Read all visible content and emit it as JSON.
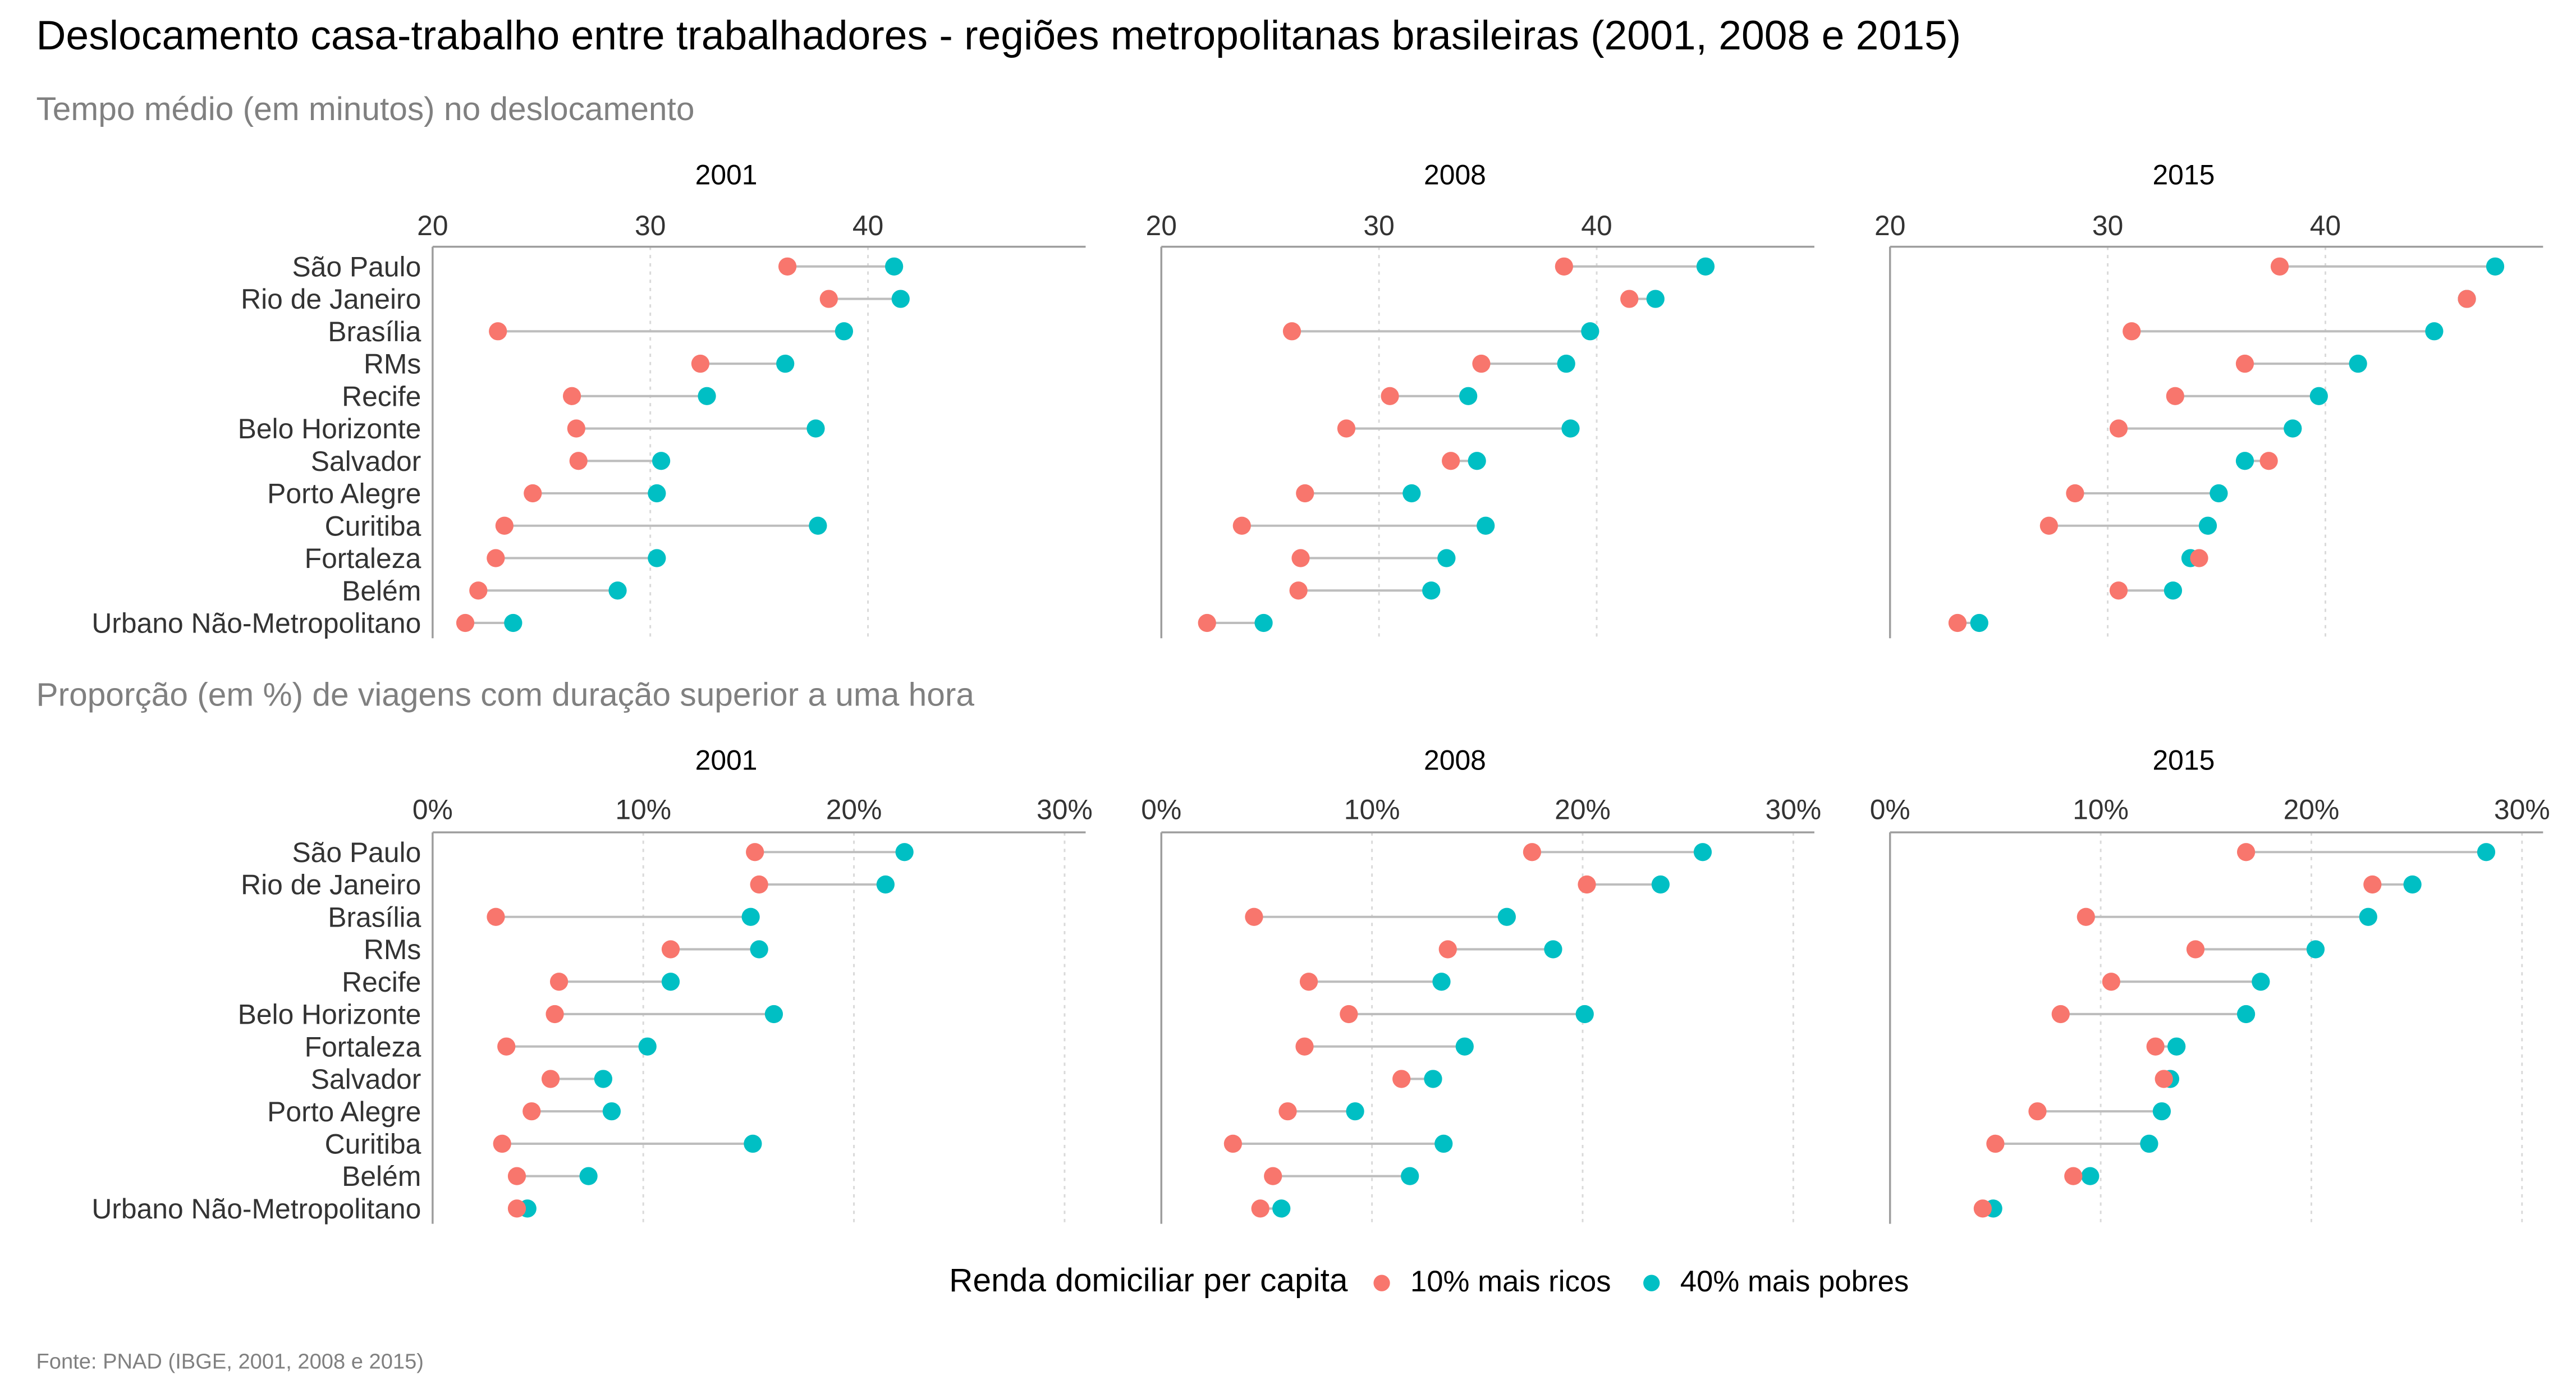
{
  "title": "Deslocamento casa-trabalho entre trabalhadores - regiões metropolitanas brasileiras (2001, 2008 e 2015)",
  "caption": "Fonte: PNAD (IBGE, 2001, 2008 e 2015)",
  "legend": {
    "title": "Renda domiciliar per capita",
    "items": [
      {
        "label": "10% mais ricos",
        "color": "#F8766D"
      },
      {
        "label": "40% mais pobres",
        "color": "#00BFC4"
      }
    ]
  },
  "colors": {
    "rich": "#F8766D",
    "poor": "#00BFC4",
    "segment": "#BDBDBD",
    "axis": "#9E9E9E",
    "grid": "#D9D9D9"
  },
  "chart_data": [
    {
      "type": "dumbbell",
      "subtitle": "Tempo médio (em minutos) no deslocamento",
      "xlim": [
        20,
        50
      ],
      "ticks": [
        20,
        30,
        40
      ],
      "tick_labels": [
        "20",
        "30",
        "40"
      ],
      "series_names": [
        "10% mais ricos",
        "40% mais pobres"
      ],
      "panels": [
        {
          "facet": "2001",
          "categories": [
            "São Paulo",
            "Rio de Janeiro",
            "Brasília",
            "RMs",
            "Recife",
            "Belo Horizonte",
            "Salvador",
            "Porto Alegre",
            "Curitiba",
            "Fortaleza",
            "Belém",
            "Urbano Não-Metropolitano"
          ],
          "rich": [
            36.3,
            38.2,
            23.0,
            32.3,
            26.4,
            26.6,
            26.7,
            24.6,
            23.3,
            22.9,
            22.1,
            21.5
          ],
          "poor": [
            41.2,
            41.5,
            38.9,
            36.2,
            32.6,
            37.6,
            30.5,
            30.3,
            37.7,
            30.3,
            28.5,
            23.7
          ]
        },
        {
          "facet": "2008",
          "categories": [
            "São Paulo",
            "Rio de Janeiro",
            "Brasília",
            "RMs",
            "Recife",
            "Belo Horizonte",
            "Salvador",
            "Porto Alegre",
            "Curitiba",
            "Fortaleza",
            "Belém",
            "Urbano Não-Metropolitano"
          ],
          "rich": [
            38.5,
            41.5,
            26.0,
            34.7,
            30.5,
            28.5,
            33.3,
            26.6,
            23.7,
            26.4,
            26.3,
            22.1
          ],
          "poor": [
            45.0,
            42.7,
            39.7,
            38.6,
            34.1,
            38.8,
            34.5,
            31.5,
            34.9,
            33.1,
            32.4,
            24.7
          ]
        },
        {
          "facet": "2015",
          "categories": [
            "São Paulo",
            "Rio de Janeiro",
            "Brasília",
            "RMs",
            "Recife",
            "Belo Horizonte",
            "Salvador",
            "Porto Alegre",
            "Curitiba",
            "Fortaleza",
            "Belém",
            "Urbano Não-Metropolitano"
          ],
          "rich": [
            37.9,
            46.5,
            31.1,
            36.3,
            33.1,
            30.5,
            37.4,
            28.5,
            27.3,
            34.2,
            30.5,
            23.1
          ],
          "poor": [
            47.8,
            46.5,
            45.0,
            41.5,
            39.7,
            38.5,
            36.3,
            35.1,
            34.6,
            33.8,
            33.0,
            24.1
          ]
        }
      ]
    },
    {
      "type": "dumbbell",
      "subtitle": "Proporção (em %) de viagens com duração superior a uma hora",
      "xlim": [
        0,
        31
      ],
      "ticks": [
        0,
        10,
        20,
        30
      ],
      "tick_labels": [
        "0%",
        "10%",
        "20%",
        "30%"
      ],
      "series_names": [
        "10% mais ricos",
        "40% mais pobres"
      ],
      "panels": [
        {
          "facet": "2001",
          "categories": [
            "São Paulo",
            "Rio de Janeiro",
            "Brasília",
            "RMs",
            "Recife",
            "Belo Horizonte",
            "Fortaleza",
            "Salvador",
            "Porto Alegre",
            "Curitiba",
            "Belém",
            "Urbano Não-Metropolitano"
          ],
          "rich": [
            15.3,
            15.5,
            3.0,
            11.3,
            6.0,
            5.8,
            3.5,
            5.6,
            4.7,
            3.3,
            4.0,
            4.0
          ],
          "poor": [
            22.4,
            21.5,
            15.1,
            15.5,
            11.3,
            16.2,
            10.2,
            8.1,
            8.5,
            15.2,
            7.4,
            4.5
          ]
        },
        {
          "facet": "2008",
          "categories": [
            "São Paulo",
            "Rio de Janeiro",
            "Brasília",
            "RMs",
            "Recife",
            "Belo Horizonte",
            "Fortaleza",
            "Salvador",
            "Porto Alegre",
            "Curitiba",
            "Belém",
            "Urbano Não-Metropolitano"
          ],
          "rich": [
            17.6,
            20.2,
            4.4,
            13.6,
            7.0,
            8.9,
            6.8,
            11.4,
            6.0,
            3.4,
            5.3,
            4.7
          ],
          "poor": [
            25.7,
            23.7,
            16.4,
            18.6,
            13.3,
            20.1,
            14.4,
            12.9,
            9.2,
            13.4,
            11.8,
            5.7
          ]
        },
        {
          "facet": "2015",
          "categories": [
            "São Paulo",
            "Rio de Janeiro",
            "Brasília",
            "RMs",
            "Recife",
            "Belo Horizonte",
            "Fortaleza",
            "Salvador",
            "Porto Alegre",
            "Curitiba",
            "Belém",
            "Urbano Não-Metropolitano"
          ],
          "rich": [
            16.9,
            22.9,
            9.3,
            14.5,
            10.5,
            8.1,
            12.6,
            13.0,
            7.0,
            5.0,
            8.7,
            4.4
          ],
          "poor": [
            28.3,
            24.8,
            22.7,
            20.2,
            17.6,
            16.9,
            13.6,
            13.3,
            12.9,
            12.3,
            9.5,
            4.9
          ]
        }
      ]
    }
  ]
}
